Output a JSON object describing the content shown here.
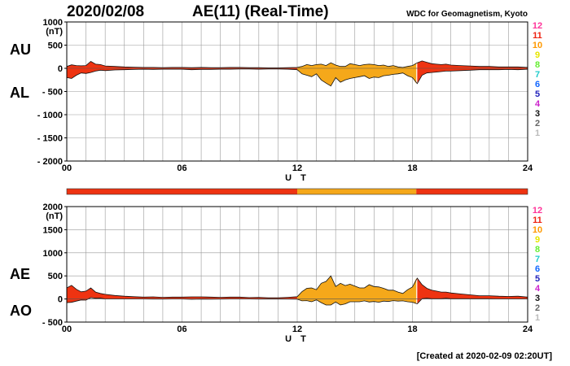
{
  "header": {
    "date": "2020/02/08",
    "title": "AE(11) (Real-Time)",
    "source": "WDC for Geomagnetism, Kyoto",
    "created": "[Created at 2020-02-09 02:20UT]"
  },
  "colors": {
    "bg": "#ffffff",
    "grid": "#999999",
    "axis": "#000000",
    "orange": "#f5a81a",
    "red": "#ee3311"
  },
  "legend": {
    "items": [
      {
        "label": "12",
        "color": "#ff3399"
      },
      {
        "label": "11",
        "color": "#ee2211"
      },
      {
        "label": "10",
        "color": "#ff9900"
      },
      {
        "label": "9",
        "color": "#e6e600"
      },
      {
        "label": "8",
        "color": "#66ee33"
      },
      {
        "label": "7",
        "color": "#22cccc"
      },
      {
        "label": "6",
        "color": "#1166ff"
      },
      {
        "label": "5",
        "color": "#2222bb"
      },
      {
        "label": "4",
        "color": "#cc22cc"
      },
      {
        "label": "3",
        "color": "#111111"
      },
      {
        "label": "2",
        "color": "#666666"
      },
      {
        "label": "1",
        "color": "#bbbbbb"
      }
    ]
  },
  "station_bar": {
    "segments": [
      {
        "from": 0,
        "to": 12,
        "station": "11"
      },
      {
        "from": 12,
        "to": 18.2,
        "station": "10"
      },
      {
        "from": 18.2,
        "to": 24,
        "station": "11"
      }
    ]
  },
  "chart_data": [
    {
      "type": "area",
      "name": "AU-AL",
      "side_labels": [
        "AU",
        "AL"
      ],
      "unit": "(nT)",
      "ylim": [
        -2000,
        1000
      ],
      "yticks": [
        "1000",
        "500",
        "0",
        "- 500",
        "- 1000",
        "- 1500",
        "- 2000"
      ],
      "ytick_values": [
        1000,
        500,
        0,
        -500,
        -1000,
        -1500,
        -2000
      ],
      "xlim": [
        0,
        24
      ],
      "xticks": [
        "00",
        "06",
        "12",
        "18",
        "24"
      ],
      "xtick_values": [
        0,
        6,
        12,
        18,
        24
      ],
      "xlabel": "U T",
      "grid": true,
      "x": [
        0,
        0.25,
        0.5,
        0.75,
        1,
        1.25,
        1.5,
        1.75,
        2,
        2.5,
        3,
        3.5,
        4,
        4.5,
        5,
        5.5,
        6,
        6.5,
        7,
        7.5,
        8,
        8.5,
        9,
        9.5,
        10,
        10.5,
        11,
        11.5,
        12,
        12.25,
        12.5,
        12.75,
        13,
        13.25,
        13.5,
        13.75,
        14,
        14.25,
        14.5,
        14.75,
        15,
        15.25,
        15.5,
        15.75,
        16,
        16.25,
        16.5,
        16.75,
        17,
        17.25,
        17.5,
        17.75,
        18,
        18.25,
        18.5,
        18.75,
        19,
        19.25,
        19.5,
        19.75,
        20,
        20.5,
        21,
        21.5,
        22,
        22.5,
        23,
        23.5,
        24
      ],
      "series": [
        {
          "name": "AU",
          "values": [
            40,
            75,
            60,
            55,
            60,
            150,
            90,
            80,
            50,
            40,
            30,
            25,
            20,
            20,
            15,
            20,
            20,
            15,
            20,
            15,
            15,
            20,
            20,
            15,
            15,
            10,
            10,
            15,
            20,
            40,
            80,
            60,
            80,
            90,
            60,
            120,
            70,
            40,
            40,
            100,
            80,
            60,
            80,
            90,
            80,
            60,
            70,
            40,
            60,
            30,
            20,
            40,
            60,
            120,
            160,
            130,
            100,
            90,
            80,
            90,
            70,
            60,
            50,
            40,
            40,
            30,
            30,
            30,
            20
          ]
        },
        {
          "name": "AL",
          "values": [
            -200,
            -220,
            -150,
            -100,
            -110,
            -90,
            -60,
            -40,
            -50,
            -35,
            -30,
            -25,
            -20,
            -25,
            -20,
            -20,
            -20,
            -30,
            -25,
            -25,
            -20,
            -20,
            -15,
            -15,
            -20,
            -15,
            -15,
            -20,
            -30,
            -120,
            -150,
            -180,
            -120,
            -250,
            -320,
            -380,
            -200,
            -300,
            -250,
            -220,
            -200,
            -180,
            -160,
            -220,
            -190,
            -200,
            -160,
            -150,
            -130,
            -120,
            -100,
            -160,
            -200,
            -330,
            -150,
            -100,
            -90,
            -80,
            -70,
            -60,
            -60,
            -50,
            -40,
            -30,
            -30,
            -30,
            -25,
            -30,
            -20
          ]
        }
      ],
      "fill_segments": [
        {
          "from": 0,
          "to": 12,
          "station": "11"
        },
        {
          "from": 12,
          "to": 18.2,
          "station": "10"
        },
        {
          "from": 18.2,
          "to": 24,
          "station": "11"
        }
      ]
    },
    {
      "type": "area",
      "name": "AE-AO",
      "side_labels": [
        "AE",
        "AO"
      ],
      "unit": "(nT)",
      "ylim": [
        -500,
        2000
      ],
      "yticks": [
        "2000",
        "1500",
        "1000",
        "500",
        "0",
        "- 500"
      ],
      "ytick_values": [
        2000,
        1500,
        1000,
        500,
        0,
        -500
      ],
      "xlim": [
        0,
        24
      ],
      "xticks": [
        "00",
        "06",
        "12",
        "18",
        "24"
      ],
      "xtick_values": [
        0,
        6,
        12,
        18,
        24
      ],
      "xlabel": "U T",
      "grid": true,
      "x": [
        0,
        0.25,
        0.5,
        0.75,
        1,
        1.25,
        1.5,
        1.75,
        2,
        2.5,
        3,
        3.5,
        4,
        4.5,
        5,
        5.5,
        6,
        6.5,
        7,
        7.5,
        8,
        8.5,
        9,
        9.5,
        10,
        10.5,
        11,
        11.5,
        12,
        12.25,
        12.5,
        12.75,
        13,
        13.25,
        13.5,
        13.75,
        14,
        14.25,
        14.5,
        14.75,
        15,
        15.25,
        15.5,
        15.75,
        16,
        16.25,
        16.5,
        16.75,
        17,
        17.25,
        17.5,
        17.75,
        18,
        18.25,
        18.5,
        18.75,
        19,
        19.25,
        19.5,
        19.75,
        20,
        20.5,
        21,
        21.5,
        22,
        22.5,
        23,
        23.5,
        24
      ],
      "series": [
        {
          "name": "AE",
          "values": [
            240,
            295,
            210,
            155,
            170,
            240,
            150,
            120,
            100,
            75,
            60,
            50,
            40,
            45,
            35,
            40,
            40,
            45,
            45,
            40,
            35,
            40,
            40,
            30,
            35,
            25,
            25,
            35,
            50,
            160,
            230,
            240,
            200,
            340,
            380,
            500,
            270,
            340,
            290,
            320,
            280,
            240,
            240,
            310,
            270,
            260,
            230,
            190,
            190,
            150,
            120,
            200,
            260,
            450,
            310,
            230,
            190,
            170,
            150,
            150,
            130,
            110,
            90,
            70,
            70,
            60,
            55,
            60,
            40
          ]
        },
        {
          "name": "AO",
          "values": [
            -80,
            -72,
            -45,
            -22,
            -25,
            30,
            15,
            20,
            0,
            2,
            0,
            0,
            0,
            -2,
            -2,
            0,
            0,
            -7,
            -2,
            -5,
            -2,
            0,
            2,
            0,
            -2,
            -2,
            -2,
            -2,
            -5,
            -40,
            -35,
            -60,
            -20,
            -80,
            -130,
            -130,
            -65,
            -130,
            -105,
            -60,
            -60,
            -60,
            -40,
            -65,
            -55,
            -70,
            -45,
            -55,
            -35,
            -45,
            -40,
            -60,
            -70,
            -105,
            5,
            15,
            5,
            5,
            5,
            15,
            5,
            5,
            5,
            5,
            5,
            0,
            2,
            0,
            0
          ]
        }
      ],
      "fill_segments": [
        {
          "from": 0,
          "to": 12,
          "station": "11"
        },
        {
          "from": 12,
          "to": 18.2,
          "station": "10"
        },
        {
          "from": 18.2,
          "to": 24,
          "station": "11"
        }
      ]
    }
  ]
}
